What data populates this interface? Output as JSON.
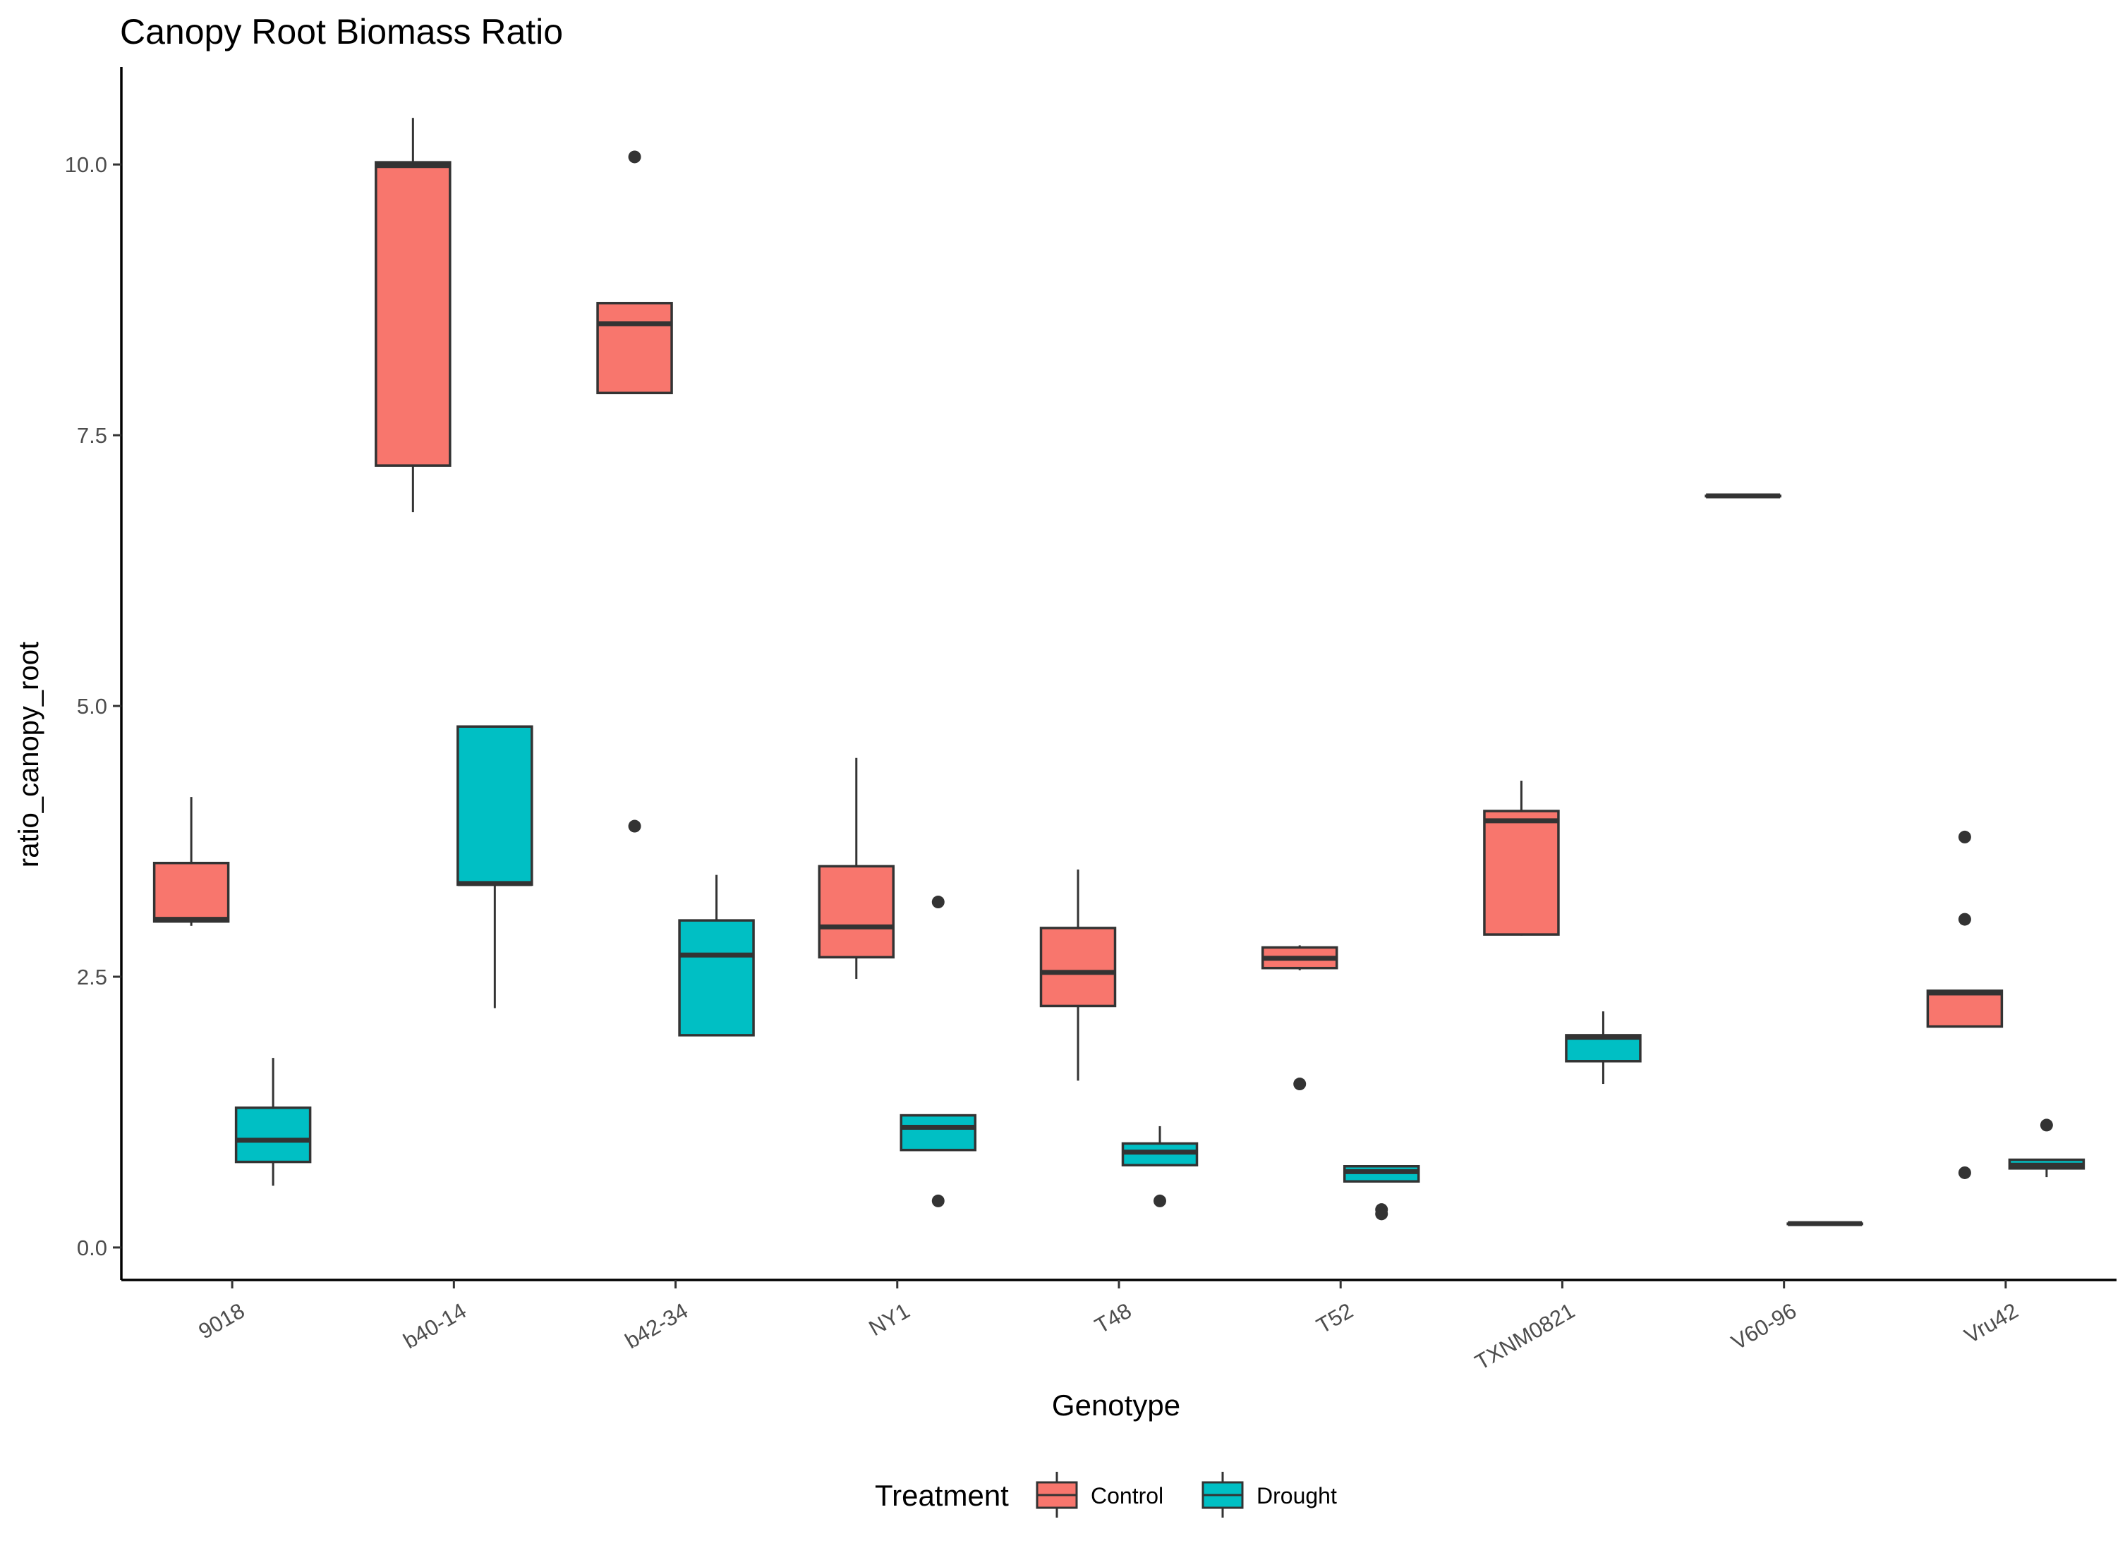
{
  "chart_data": {
    "type": "boxplot",
    "title": "Canopy Root Biomass Ratio",
    "xlabel": "Genotype",
    "ylabel": "ratio_canopy_root",
    "ylim": [
      -0.3,
      10.9
    ],
    "yticks": [
      0.0,
      2.5,
      5.0,
      7.5,
      10.0
    ],
    "ytick_labels": [
      "0.0",
      "2.5",
      "5.0",
      "7.5",
      "10.0"
    ],
    "grid": false,
    "categories": [
      "9018",
      "b40-14",
      "b42-34",
      "NY1",
      "T48",
      "T52",
      "TXNM0821",
      "V60-96",
      "Vru42"
    ],
    "legend": {
      "title": "Treatment",
      "placement": "bottom"
    },
    "series": [
      {
        "name": "Control",
        "color": "#F8766D",
        "boxes": [
          {
            "category": "9018",
            "whisker_low": 2.97,
            "q1": 3.01,
            "median": 3.03,
            "q3": 3.55,
            "whisker_high": 4.16,
            "outliers": []
          },
          {
            "category": "b40-14",
            "whisker_low": 6.79,
            "q1": 7.22,
            "median": 9.99,
            "q3": 10.02,
            "whisker_high": 10.43,
            "outliers": []
          },
          {
            "category": "b42-34",
            "whisker_low": 7.89,
            "q1": 7.89,
            "median": 8.53,
            "q3": 8.72,
            "whisker_high": 8.72,
            "outliers": [
              10.07,
              3.89
            ]
          },
          {
            "category": "NY1",
            "whisker_low": 2.48,
            "q1": 2.68,
            "median": 2.96,
            "q3": 3.52,
            "whisker_high": 4.52,
            "outliers": []
          },
          {
            "category": "T48",
            "whisker_low": 1.54,
            "q1": 2.23,
            "median": 2.54,
            "q3": 2.95,
            "whisker_high": 3.49,
            "outliers": []
          },
          {
            "category": "T52",
            "whisker_low": 2.56,
            "q1": 2.58,
            "median": 2.67,
            "q3": 2.77,
            "whisker_high": 2.79,
            "outliers": [
              1.51
            ]
          },
          {
            "category": "TXNM0821",
            "whisker_low": 2.88,
            "q1": 2.89,
            "median": 3.94,
            "q3": 4.03,
            "whisker_high": 4.31,
            "outliers": []
          },
          {
            "category": "V60-96",
            "whisker_low": 6.94,
            "q1": 6.94,
            "median": 6.94,
            "q3": 6.94,
            "whisker_high": 6.94,
            "outliers": []
          },
          {
            "category": "Vru42",
            "whisker_low": 2.04,
            "q1": 2.04,
            "median": 2.35,
            "q3": 2.37,
            "whisker_high": 2.37,
            "outliers": [
              3.79,
              3.03,
              0.69
            ]
          }
        ]
      },
      {
        "name": "Drought",
        "color": "#00BFC4",
        "boxes": [
          {
            "category": "9018",
            "whisker_low": 0.57,
            "q1": 0.79,
            "median": 0.99,
            "q3": 1.29,
            "whisker_high": 1.75,
            "outliers": []
          },
          {
            "category": "b40-14",
            "whisker_low": 2.21,
            "q1": 3.35,
            "median": 3.36,
            "q3": 4.81,
            "whisker_high": 4.81,
            "outliers": []
          },
          {
            "category": "b42-34",
            "whisker_low": 1.96,
            "q1": 1.96,
            "median": 2.7,
            "q3": 3.02,
            "whisker_high": 3.44,
            "outliers": []
          },
          {
            "category": "NY1",
            "whisker_low": 0.9,
            "q1": 0.9,
            "median": 1.11,
            "q3": 1.22,
            "whisker_high": 1.22,
            "outliers": [
              3.19,
              0.43
            ]
          },
          {
            "category": "T48",
            "whisker_low": 0.76,
            "q1": 0.76,
            "median": 0.88,
            "q3": 0.96,
            "whisker_high": 1.12,
            "outliers": [
              0.43
            ]
          },
          {
            "category": "T52",
            "whisker_low": 0.61,
            "q1": 0.61,
            "median": 0.7,
            "q3": 0.75,
            "whisker_high": 0.75,
            "outliers": [
              0.35,
              0.31
            ]
          },
          {
            "category": "TXNM0821",
            "whisker_low": 1.51,
            "q1": 1.72,
            "median": 1.94,
            "q3": 1.96,
            "whisker_high": 2.18,
            "outliers": []
          },
          {
            "category": "V60-96",
            "whisker_low": 0.22,
            "q1": 0.22,
            "median": 0.22,
            "q3": 0.22,
            "whisker_high": 0.22,
            "outliers": []
          },
          {
            "category": "Vru42",
            "whisker_low": 0.65,
            "q1": 0.73,
            "median": 0.76,
            "q3": 0.81,
            "whisker_high": 0.81,
            "outliers": [
              1.13
            ]
          }
        ]
      }
    ]
  }
}
